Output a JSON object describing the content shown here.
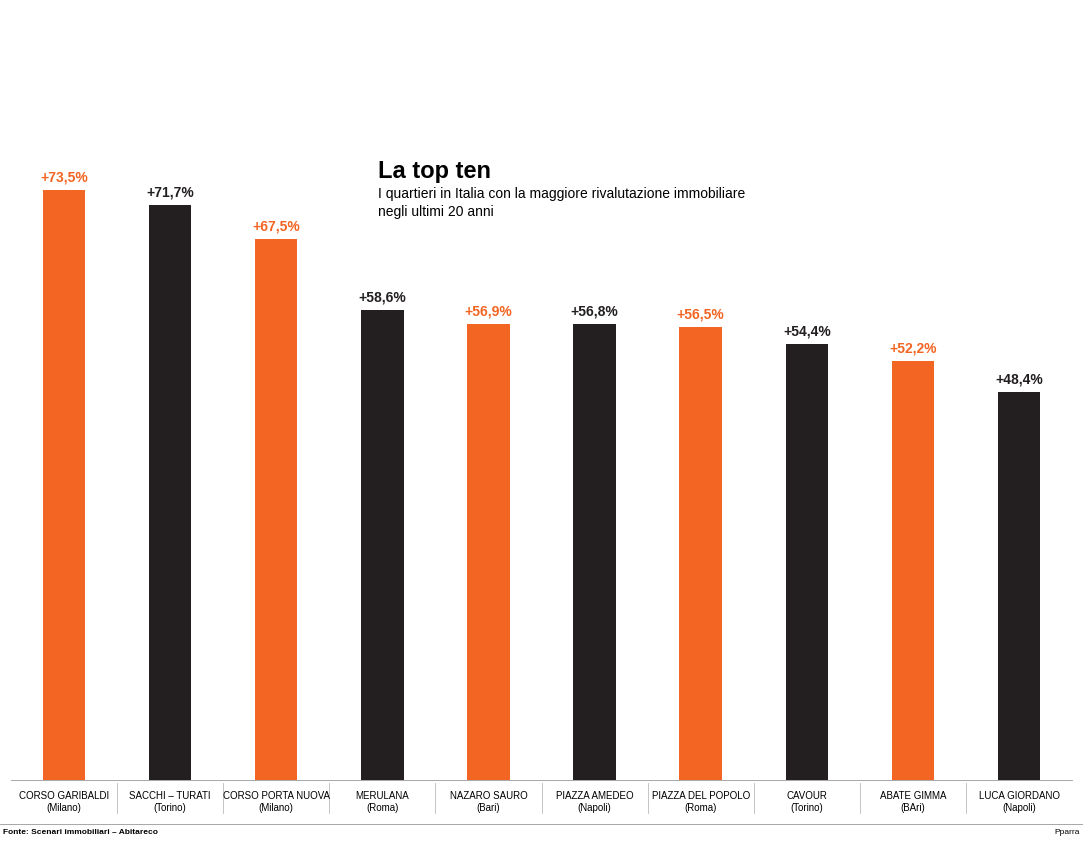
{
  "chart_data": {
    "type": "bar",
    "title": "La top ten",
    "subtitle": "I quartieri in Italia con la maggiore rivalutazione immobiliare\nnegli ultimi 20 anni",
    "source": "Fonte: Scenari immobiliari – Abitareco",
    "credit": "Pparra",
    "categories": [
      "CORSO GARIBALDI\n(Milano)",
      "SACCHI – TURATI\n(Torino)",
      "CORSO PORTA NUOVA\n(Milano)",
      "MERULANA\n(Roma)",
      "NAZARO SAURO\n(Bari)",
      "PIAZZA AMEDEO\n(Napoli)",
      "PIAZZA DEL POPOLO\n(Roma)",
      "CAVOUR\n(Torino)",
      "ABATE GIMMA\n(BAri)",
      "LUCA GIORDANO\n(Napoli)"
    ],
    "values": [
      73.5,
      71.7,
      67.5,
      58.6,
      56.9,
      56.8,
      56.5,
      54.4,
      52.2,
      48.4
    ],
    "value_labels": [
      "+73,5%",
      "+71,7%",
      "+67,5%",
      "+58,6%",
      "+56,9%",
      "+56,8%",
      "+56,5%",
      "+54,4%",
      "+52,2%",
      "+48,4%"
    ],
    "colors": [
      "#f26522",
      "#231f20",
      "#f26522",
      "#231f20",
      "#f26522",
      "#231f20",
      "#f26522",
      "#231f20",
      "#f26522",
      "#231f20"
    ],
    "ylim": [
      0,
      92
    ],
    "data_labels": true,
    "tick_labels": false,
    "grid": false
  }
}
